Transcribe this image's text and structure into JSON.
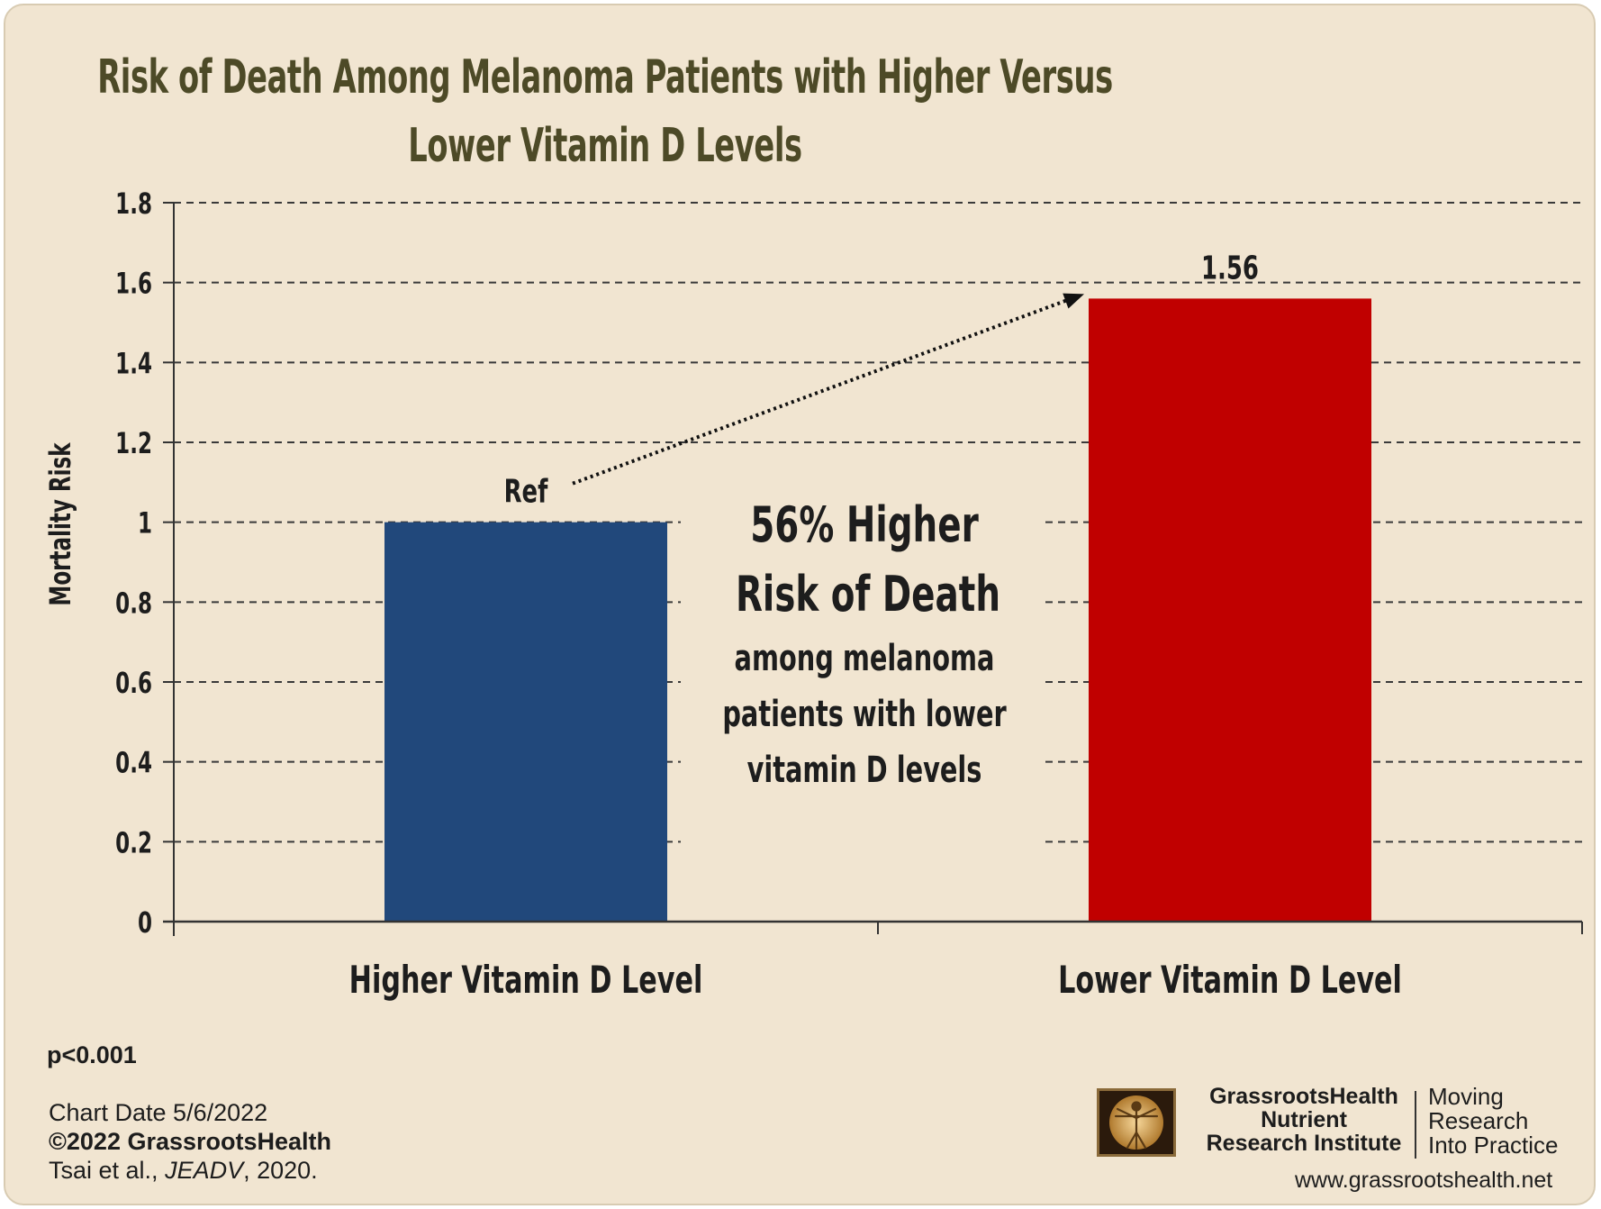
{
  "title": {
    "line1": "Risk of Death Among Melanoma Patients with Higher Versus",
    "line2": "Lower Vitamin D Levels"
  },
  "chart_data": {
    "type": "bar",
    "categories": [
      "Higher Vitamin D Level",
      "Lower Vitamin D Level"
    ],
    "values": [
      1.0,
      1.56
    ],
    "data_labels": [
      "Ref",
      "1.56"
    ],
    "bar_colors": [
      "#21487b",
      "#c00000"
    ],
    "ylabel": "Mortality Risk",
    "ylim": [
      0,
      1.8
    ],
    "yticks": [
      0,
      0.2,
      0.4,
      0.6,
      0.8,
      1,
      1.2,
      1.4,
      1.6,
      1.8
    ],
    "ytick_labels": [
      "0",
      "0.2",
      "0.4",
      "0.6",
      "0.8",
      "1",
      "1.2",
      "1.4",
      "1.6",
      "1.8"
    ],
    "grid": "dashed horizontal",
    "annotation": {
      "headline1": "56% Higher",
      "headline2": "Risk of Death",
      "body1": "among melanoma",
      "body2": "patients with lower",
      "body3": "vitamin D levels"
    }
  },
  "footer": {
    "pvalue": "p<0.001",
    "chart_date": "Chart Date 5/6/2022",
    "copyright": "©2022 GrassrootsHealth",
    "citation_authors": "Tsai et al., ",
    "citation_journal": "JEADV",
    "citation_year": ", 2020."
  },
  "branding": {
    "org_line1": "GrassrootsHealth",
    "org_line2": "Nutrient",
    "org_line3": "Research Institute",
    "tag_line1": "Moving",
    "tag_line2": "Research",
    "tag_line3": "Into Practice",
    "url": "www.grassrootshealth.net"
  },
  "colors": {
    "background": "#f1e5d1",
    "title": "#4d4a27",
    "axis": "#333333"
  }
}
